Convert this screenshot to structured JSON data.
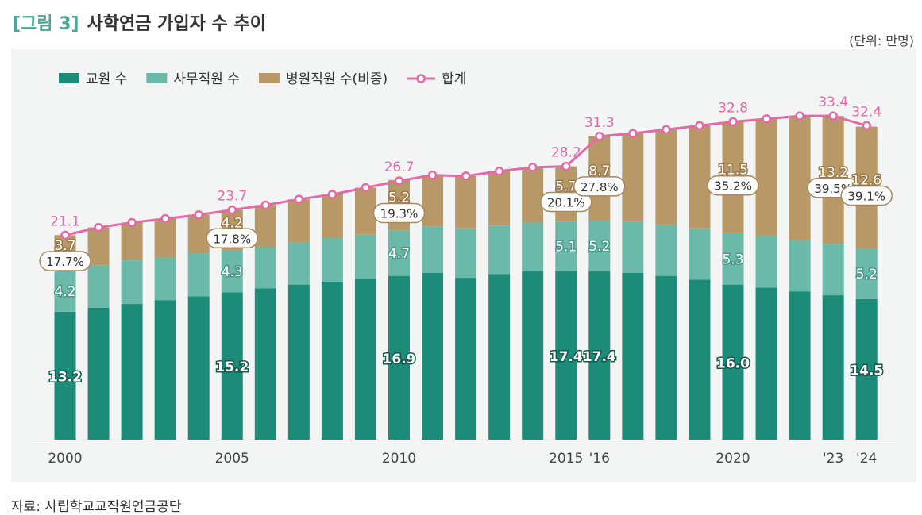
{
  "header": {
    "tag": "[그림 3]",
    "title": "사학연금 가입자 수 추이",
    "unit": "(단위: 만명)",
    "source": "자료: 사립학교교직원연금공단"
  },
  "colors": {
    "teachers": "#1c8c79",
    "staff": "#6bb9a8",
    "hospital": "#b99867",
    "total": "#e46aa6",
    "panel_bg": "#f3f5f4"
  },
  "chart_data": {
    "type": "bar",
    "stacked": true,
    "categories": [
      "2000",
      "2001",
      "2002",
      "2003",
      "2004",
      "2005",
      "2006",
      "2007",
      "2008",
      "2009",
      "2010",
      "2011",
      "2012",
      "2013",
      "2014",
      "2015",
      "2016",
      "2017",
      "2018",
      "2019",
      "2020",
      "2021",
      "2022",
      "2023",
      "2024"
    ],
    "tick_labels": [
      {
        "index": 0,
        "label": "2000"
      },
      {
        "index": 5,
        "label": "2005"
      },
      {
        "index": 10,
        "label": "2010"
      },
      {
        "index": 15,
        "label": "2015"
      },
      {
        "index": 16,
        "label": "'16"
      },
      {
        "index": 20,
        "label": "2020"
      },
      {
        "index": 23,
        "label": "'23"
      },
      {
        "index": 24,
        "label": "'24"
      }
    ],
    "ylim": [
      0,
      38
    ],
    "grid": false,
    "legend_position": "top-left",
    "series": [
      {
        "name": "교원 수",
        "key": "teachers",
        "values": [
          13.2,
          13.6,
          14.0,
          14.4,
          14.8,
          15.2,
          15.6,
          16.0,
          16.3,
          16.6,
          16.9,
          17.2,
          16.7,
          17.1,
          17.4,
          17.4,
          17.4,
          17.2,
          16.9,
          16.5,
          16.0,
          15.7,
          15.3,
          14.9,
          14.5
        ]
      },
      {
        "name": "사무직원 수",
        "key": "staff",
        "values": [
          4.2,
          4.4,
          4.5,
          4.4,
          4.4,
          4.3,
          4.3,
          4.4,
          4.5,
          4.6,
          4.7,
          4.8,
          5.1,
          5.0,
          5.0,
          5.1,
          5.2,
          5.3,
          5.3,
          5.3,
          5.3,
          5.3,
          5.3,
          5.3,
          5.2
        ]
      },
      {
        "name": "병원직원 수(비중)",
        "key": "hospital",
        "values": [
          3.7,
          3.9,
          3.9,
          4.0,
          4.0,
          4.2,
          4.3,
          4.4,
          4.5,
          4.8,
          5.2,
          5.3,
          5.4,
          5.6,
          5.7,
          5.7,
          8.7,
          9.1,
          9.8,
          10.6,
          11.5,
          12.1,
          12.8,
          13.2,
          12.6
        ]
      }
    ],
    "total": {
      "name": "합계",
      "values": [
        21.1,
        21.9,
        22.4,
        22.8,
        23.2,
        23.7,
        24.2,
        24.8,
        25.3,
        26.0,
        26.7,
        27.3,
        27.2,
        27.7,
        28.1,
        28.2,
        31.3,
        31.6,
        32.0,
        32.4,
        32.8,
        33.1,
        33.4,
        33.4,
        32.4
      ]
    },
    "value_labels": [
      {
        "index": 0,
        "teachers": "13.2",
        "staff": "4.2",
        "hospital": "3.7",
        "share": "17.7%",
        "total": "21.1"
      },
      {
        "index": 5,
        "teachers": "15.2",
        "staff": "4.3",
        "hospital": "4.2",
        "share": "17.8%",
        "total": "23.7"
      },
      {
        "index": 10,
        "teachers": "16.9",
        "staff": "4.7",
        "hospital": "5.2",
        "share": "19.3%",
        "total": "26.7"
      },
      {
        "index": 15,
        "teachers": "17.4",
        "staff": "5.1",
        "hospital": "5.7",
        "share": "20.1%",
        "total": "28.2"
      },
      {
        "index": 16,
        "teachers": "17.4",
        "staff": "5.2",
        "hospital": "8.7",
        "share": "27.8%",
        "total": "31.3"
      },
      {
        "index": 20,
        "teachers": "16.0",
        "staff": "5.3",
        "hospital": "11.5",
        "share": "35.2%",
        "total": "32.8"
      },
      {
        "index": 23,
        "teachers": "",
        "staff": "",
        "hospital": "13.2",
        "share": "39.5%",
        "total": "33.4"
      },
      {
        "index": 24,
        "teachers": "14.5",
        "staff": "5.2",
        "hospital": "12.6",
        "share": "39.1%",
        "total": "32.4"
      }
    ]
  }
}
